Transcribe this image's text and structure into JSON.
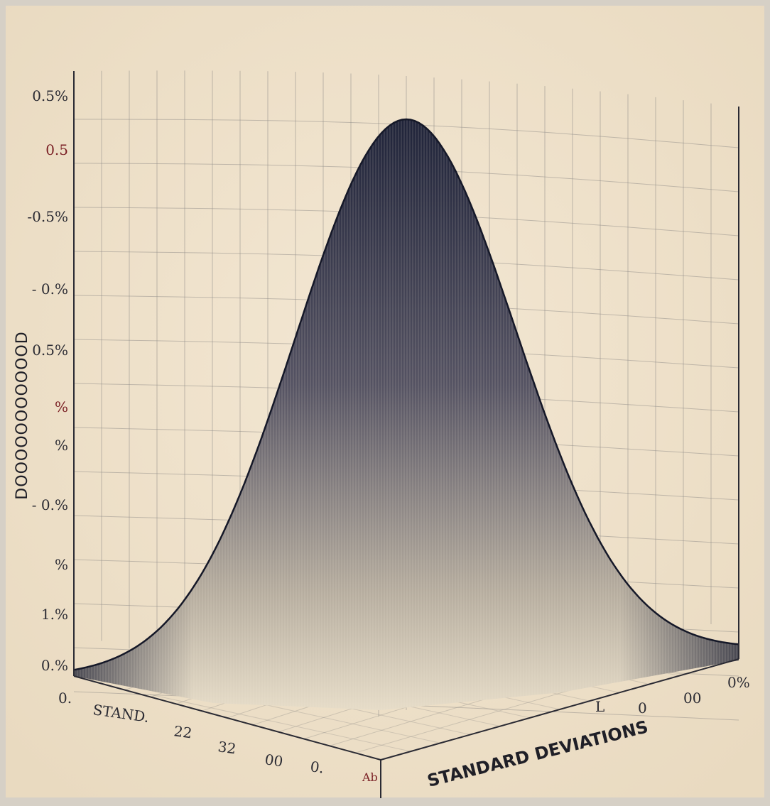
{
  "chart_data": {
    "type": "area",
    "title": "",
    "ylabel": "DOOOOOOOOOOOD",
    "y_tick_labels": [
      {
        "text": "0.5%",
        "style": "normal"
      },
      {
        "text": "0.5",
        "style": "red"
      },
      {
        "text": "-0.5%",
        "style": "normal"
      },
      {
        "text": "- 0.%",
        "style": "normal"
      },
      {
        "text": "0.5%",
        "style": "normal"
      },
      {
        "text": "%",
        "style": "red"
      },
      {
        "text": "%",
        "style": "normal"
      },
      {
        "text": "- 0.%",
        "style": "normal"
      },
      {
        "text": "%",
        "style": "normal"
      },
      {
        "text": "1.%",
        "style": "normal"
      },
      {
        "text": "0.%",
        "style": "normal"
      }
    ],
    "x_left_tick_labels": [
      "0.",
      "STAND.",
      "22",
      "32",
      "00",
      "0."
    ],
    "x_right_tick_labels": [
      "L",
      "0",
      "00",
      "0%"
    ],
    "corner_label": "Ab",
    "xlabel_right": "STANDARD DEVIATIONS",
    "curve": {
      "kind": "normal",
      "x_range": [
        -3,
        3
      ],
      "mean": 0,
      "sd": 1
    },
    "colors": {
      "background": "#efe2cc",
      "grid": "#8f8c88",
      "curve_dark": "#1d2238",
      "curve_light": "#e6dcc8",
      "frame": "#d6d0c6"
    }
  }
}
